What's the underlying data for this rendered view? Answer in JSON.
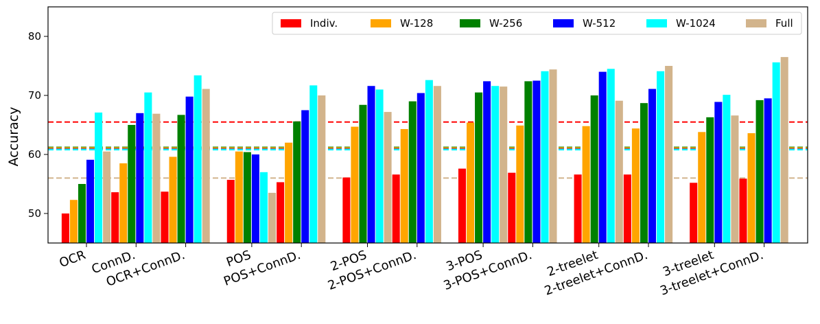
{
  "chart_data": {
    "type": "bar",
    "ylabel": "Accuracy",
    "xlabel": "",
    "title": "",
    "ylim": [
      45,
      85
    ],
    "yticks": [
      50,
      60,
      70,
      80
    ],
    "grid": false,
    "legend_position": "top-right",
    "categories": [
      "OCR",
      "ConnD.",
      "OCR+ConnD.",
      "POS",
      "POS+ConnD.",
      "2-POS",
      "2-POS+ConnD.",
      "3-POS",
      "3-POS+ConnD.",
      "2-treelet",
      "2-treelet+ConnD.",
      "3-treelet",
      "3-treelet+ConnD."
    ],
    "series": [
      {
        "name": "Indiv.",
        "color": "#ff0000",
        "values": [
          50.0,
          53.6,
          53.7,
          55.7,
          55.3,
          56.1,
          56.6,
          57.6,
          56.9,
          56.6,
          56.6,
          55.2,
          55.9
        ]
      },
      {
        "name": "W-128",
        "color": "#ffa500",
        "values": [
          52.3,
          58.5,
          59.6,
          60.5,
          62.0,
          64.7,
          64.3,
          65.4,
          64.9,
          64.8,
          64.4,
          63.8,
          63.6
        ]
      },
      {
        "name": "W-256",
        "color": "#008000",
        "values": [
          55.0,
          65.0,
          66.7,
          60.4,
          65.6,
          68.4,
          69.0,
          70.5,
          72.4,
          70.0,
          68.7,
          66.3,
          69.2
        ]
      },
      {
        "name": "W-512",
        "color": "#0000ff",
        "values": [
          59.1,
          67.0,
          69.8,
          60.0,
          67.5,
          71.6,
          70.4,
          72.4,
          72.5,
          74.0,
          71.1,
          68.9,
          69.5
        ]
      },
      {
        "name": "W-1024",
        "color": "#00ffff",
        "values": [
          67.1,
          70.5,
          73.4,
          57.0,
          71.7,
          71.0,
          72.6,
          71.6,
          74.1,
          74.5,
          74.1,
          70.1,
          75.6
        ]
      },
      {
        "name": "Full",
        "color": "#d2b48c",
        "values": [
          60.5,
          66.9,
          71.1,
          53.5,
          70.0,
          67.2,
          71.6,
          71.5,
          74.4,
          69.1,
          75.0,
          66.6,
          76.5
        ]
      }
    ],
    "reference_lines": [
      {
        "value": 65.5,
        "color": "#ff0000",
        "style": "dashed"
      },
      {
        "value": 61.2,
        "color": "#008000",
        "style": "dashed"
      },
      {
        "value": 61.0,
        "color": "#0000ff",
        "style": "dashed"
      },
      {
        "value": 60.8,
        "color": "#00ffff",
        "style": "dashed"
      },
      {
        "value": 61.1,
        "color": "#ffa500",
        "style": "dashed"
      },
      {
        "value": 56.0,
        "color": "#d2b48c",
        "style": "dashed"
      }
    ]
  }
}
